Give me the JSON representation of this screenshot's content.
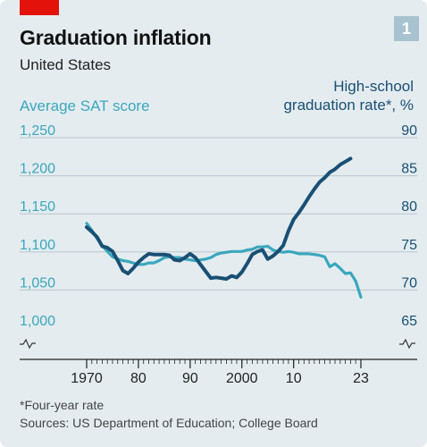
{
  "chart_data": {
    "type": "line",
    "title": "Graduation inflation",
    "subtitle": "United States",
    "badge": "1",
    "left_axis": {
      "label": "Average SAT score",
      "ticks": [
        "1,250",
        "1,200",
        "1,150",
        "1,100",
        "1,050",
        "1,000"
      ],
      "range": [
        1000,
        1250
      ]
    },
    "right_axis": {
      "label_line1": "High-school",
      "label_line2": "graduation rate*, %",
      "ticks": [
        "90",
        "85",
        "80",
        "75",
        "70",
        "65"
      ],
      "range": [
        65,
        90
      ]
    },
    "x_ticks": [
      {
        "year": 1970,
        "label": "1970"
      },
      {
        "year": 1980,
        "label": "80"
      },
      {
        "year": 1990,
        "label": "90"
      },
      {
        "year": 2000,
        "label": "2000"
      },
      {
        "year": 2010,
        "label": "10"
      },
      {
        "year": 2023,
        "label": "23"
      }
    ],
    "x_range": [
      1970,
      2023
    ],
    "series": [
      {
        "axis": "left",
        "color": "#3aa7bd",
        "points": [
          [
            1970,
            1127
          ],
          [
            1971,
            1118
          ],
          [
            1972,
            1107
          ],
          [
            1973,
            1098
          ],
          [
            1974,
            1090
          ],
          [
            1975,
            1083
          ],
          [
            1976,
            1080
          ],
          [
            1977,
            1078
          ],
          [
            1978,
            1077
          ],
          [
            1979,
            1075
          ],
          [
            1980,
            1073
          ],
          [
            1981,
            1073
          ],
          [
            1982,
            1075
          ],
          [
            1983,
            1075
          ],
          [
            1984,
            1078
          ],
          [
            1985,
            1082
          ],
          [
            1986,
            1083
          ],
          [
            1987,
            1082
          ],
          [
            1988,
            1082
          ],
          [
            1989,
            1080
          ],
          [
            1990,
            1079
          ],
          [
            1991,
            1078
          ],
          [
            1992,
            1079
          ],
          [
            1993,
            1080
          ],
          [
            1994,
            1082
          ],
          [
            1995,
            1086
          ],
          [
            1996,
            1088
          ],
          [
            1997,
            1089
          ],
          [
            1998,
            1090
          ],
          [
            1999,
            1090
          ],
          [
            2000,
            1090
          ],
          [
            2001,
            1092
          ],
          [
            2002,
            1093
          ],
          [
            2003,
            1096
          ],
          [
            2004,
            1096
          ],
          [
            2005,
            1097
          ],
          [
            2006,
            1092
          ],
          [
            2007,
            1090
          ],
          [
            2008,
            1089
          ],
          [
            2009,
            1090
          ],
          [
            2010,
            1089
          ],
          [
            2011,
            1087
          ],
          [
            2012,
            1087
          ],
          [
            2013,
            1087
          ],
          [
            2014,
            1086
          ],
          [
            2015,
            1085
          ],
          [
            2016,
            1083
          ],
          [
            2017,
            1070
          ],
          [
            2018,
            1074
          ],
          [
            2019,
            1068
          ],
          [
            2020,
            1061
          ],
          [
            2021,
            1062
          ],
          [
            2022,
            1051
          ],
          [
            2023,
            1030
          ]
        ]
      },
      {
        "axis": "right",
        "color": "#1a4f74",
        "points": [
          [
            1970,
            77.2
          ],
          [
            1971,
            76.6
          ],
          [
            1972,
            75.9
          ],
          [
            1973,
            74.7
          ],
          [
            1974,
            74.5
          ],
          [
            1975,
            74.0
          ],
          [
            1976,
            72.8
          ],
          [
            1977,
            71.5
          ],
          [
            1978,
            71.1
          ],
          [
            1979,
            71.8
          ],
          [
            1980,
            72.6
          ],
          [
            1981,
            73.2
          ],
          [
            1982,
            73.7
          ],
          [
            1983,
            73.6
          ],
          [
            1984,
            73.6
          ],
          [
            1985,
            73.6
          ],
          [
            1986,
            73.5
          ],
          [
            1987,
            72.9
          ],
          [
            1988,
            72.8
          ],
          [
            1989,
            73.2
          ],
          [
            1990,
            73.7
          ],
          [
            1991,
            73.2
          ],
          [
            1992,
            72.3
          ],
          [
            1993,
            71.4
          ],
          [
            1994,
            70.5
          ],
          [
            1995,
            70.6
          ],
          [
            1996,
            70.5
          ],
          [
            1997,
            70.4
          ],
          [
            1998,
            70.8
          ],
          [
            1999,
            70.6
          ],
          [
            2000,
            71.3
          ],
          [
            2001,
            72.4
          ],
          [
            2002,
            73.6
          ],
          [
            2003,
            74.0
          ],
          [
            2004,
            74.2
          ],
          [
            2005,
            73.0
          ],
          [
            2006,
            73.4
          ],
          [
            2007,
            74.0
          ],
          [
            2008,
            74.8
          ],
          [
            2009,
            76.7
          ],
          [
            2010,
            78.2
          ],
          [
            2011,
            79.1
          ],
          [
            2012,
            80.1
          ],
          [
            2013,
            81.2
          ],
          [
            2014,
            82.2
          ],
          [
            2015,
            83.1
          ],
          [
            2016,
            83.7
          ],
          [
            2017,
            84.4
          ],
          [
            2018,
            84.8
          ],
          [
            2019,
            85.4
          ],
          [
            2020,
            85.8
          ],
          [
            2021,
            86.2
          ]
        ]
      }
    ],
    "grid": true
  },
  "footnote": "*Four-year rate",
  "source": "Sources: US Department of Education; College Board"
}
